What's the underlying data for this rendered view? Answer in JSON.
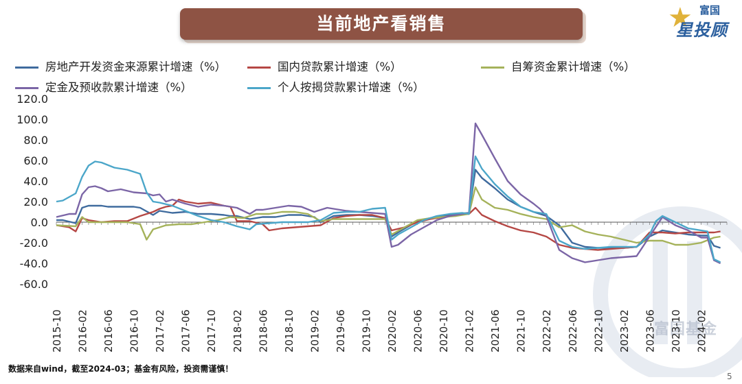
{
  "title": "当前地产看销售",
  "logo": {
    "top": "富国",
    "main": "星投顾",
    "icon": "star-icon",
    "star_color": "#e0b23a",
    "text_color": "#2b5f9e"
  },
  "watermark_text": "富国基金",
  "footer": "数据来自wind，截至2024-03；基金有风险，投资需谨慎！",
  "page_number": "5",
  "chart_data": {
    "type": "line",
    "ylim": [
      -60,
      120
    ],
    "yticks": [
      "120.0",
      "100.0",
      "80.0",
      "60.0",
      "40.0",
      "20.0",
      "0.0",
      "-20.0",
      "-40.0",
      "-60.0"
    ],
    "grid": false,
    "legend_position": "top",
    "xticks": [
      "2015-10",
      "2016-02",
      "2016-06",
      "2016-10",
      "2017-02",
      "2017-06",
      "2017-10",
      "2018-02",
      "2018-06",
      "2018-10",
      "2019-02",
      "2019-06",
      "2019-10",
      "2020-02",
      "2020-06",
      "2020-10",
      "2021-02",
      "2021-06",
      "2021-10",
      "2022-02",
      "2022-06",
      "2022-10",
      "2023-02",
      "2023-06",
      "2023-10",
      "2024-02"
    ],
    "series": [
      {
        "name": "房地产开发资金来源累计增速（%）",
        "color": "#3f6b9e",
        "points": [
          [
            0,
            2
          ],
          [
            1,
            2
          ],
          [
            3,
            -1
          ],
          [
            4,
            14
          ],
          [
            5,
            16
          ],
          [
            7,
            16
          ],
          [
            8,
            15
          ],
          [
            10,
            15
          ],
          [
            12,
            15
          ],
          [
            13,
            14
          ],
          [
            15,
            7
          ],
          [
            16,
            11
          ],
          [
            18,
            9
          ],
          [
            20,
            10
          ],
          [
            22,
            8
          ],
          [
            24,
            8
          ],
          [
            26,
            7
          ],
          [
            27,
            6
          ],
          [
            28,
            6
          ],
          [
            30,
            3
          ],
          [
            32,
            5
          ],
          [
            34,
            5
          ],
          [
            36,
            7
          ],
          [
            38,
            7
          ],
          [
            40,
            5
          ],
          [
            41,
            0
          ],
          [
            43,
            6
          ],
          [
            45,
            7
          ],
          [
            47,
            7
          ],
          [
            49,
            6
          ],
          [
            51,
            4
          ],
          [
            52,
            -14
          ],
          [
            53,
            -10
          ],
          [
            56,
            1
          ],
          [
            58,
            4
          ],
          [
            60,
            6
          ],
          [
            62,
            8
          ],
          [
            64,
            9
          ],
          [
            65,
            51
          ],
          [
            66,
            43
          ],
          [
            68,
            33
          ],
          [
            70,
            22
          ],
          [
            72,
            15
          ],
          [
            74,
            10
          ],
          [
            76,
            6
          ],
          [
            78,
            -3
          ],
          [
            80,
            -20
          ],
          [
            82,
            -24
          ],
          [
            84,
            -25
          ],
          [
            86,
            -25
          ],
          [
            88,
            -25
          ],
          [
            90,
            -24
          ],
          [
            92,
            -14
          ],
          [
            94,
            -8
          ],
          [
            96,
            -10
          ],
          [
            98,
            -12
          ],
          [
            100,
            -13
          ],
          [
            101,
            -13
          ],
          [
            102,
            -23
          ],
          [
            103,
            -25
          ]
        ]
      },
      {
        "name": "国内贷款累计增速（%）",
        "color": "#b54744",
        "points": [
          [
            0,
            -3
          ],
          [
            2,
            -5
          ],
          [
            3,
            -9
          ],
          [
            4,
            4
          ],
          [
            5,
            2
          ],
          [
            7,
            0
          ],
          [
            9,
            1
          ],
          [
            11,
            1
          ],
          [
            13,
            6
          ],
          [
            15,
            10
          ],
          [
            16,
            13
          ],
          [
            17,
            15
          ],
          [
            18,
            16
          ],
          [
            19,
            22
          ],
          [
            20,
            20
          ],
          [
            22,
            18
          ],
          [
            24,
            19
          ],
          [
            26,
            16
          ],
          [
            27,
            15
          ],
          [
            28,
            1
          ],
          [
            30,
            1
          ],
          [
            32,
            -2
          ],
          [
            33,
            -8
          ],
          [
            35,
            -6
          ],
          [
            37,
            -5
          ],
          [
            39,
            -4
          ],
          [
            41,
            -3
          ],
          [
            43,
            4
          ],
          [
            45,
            6
          ],
          [
            47,
            7
          ],
          [
            49,
            7
          ],
          [
            51,
            4
          ],
          [
            52,
            -8
          ],
          [
            54,
            -5
          ],
          [
            56,
            0
          ],
          [
            58,
            3
          ],
          [
            60,
            5
          ],
          [
            62,
            7
          ],
          [
            64,
            8
          ],
          [
            65,
            14
          ],
          [
            66,
            7
          ],
          [
            68,
            1
          ],
          [
            70,
            -4
          ],
          [
            72,
            -8
          ],
          [
            74,
            -10
          ],
          [
            76,
            -14
          ],
          [
            78,
            -22
          ],
          [
            80,
            -25
          ],
          [
            82,
            -26
          ],
          [
            84,
            -27
          ],
          [
            86,
            -26
          ],
          [
            88,
            -25
          ],
          [
            90,
            -24
          ],
          [
            92,
            -10
          ],
          [
            94,
            -10
          ],
          [
            96,
            -11
          ],
          [
            98,
            -10
          ],
          [
            100,
            -10
          ],
          [
            102,
            -10
          ],
          [
            103,
            -9
          ]
        ]
      },
      {
        "name": "自筹资金累计增速（%）",
        "color": "#a5b25a",
        "points": [
          [
            0,
            -3
          ],
          [
            3,
            -4
          ],
          [
            4,
            5
          ],
          [
            5,
            0
          ],
          [
            7,
            0
          ],
          [
            9,
            0
          ],
          [
            11,
            0
          ],
          [
            13,
            -2
          ],
          [
            14,
            -17
          ],
          [
            15,
            -7
          ],
          [
            17,
            -3
          ],
          [
            19,
            -2
          ],
          [
            21,
            -2
          ],
          [
            23,
            0
          ],
          [
            25,
            2
          ],
          [
            27,
            5
          ],
          [
            29,
            4
          ],
          [
            31,
            8
          ],
          [
            33,
            8
          ],
          [
            35,
            10
          ],
          [
            37,
            10
          ],
          [
            39,
            8
          ],
          [
            41,
            1
          ],
          [
            43,
            3
          ],
          [
            45,
            3
          ],
          [
            47,
            3
          ],
          [
            49,
            3
          ],
          [
            51,
            3
          ],
          [
            52,
            -12
          ],
          [
            54,
            -5
          ],
          [
            56,
            2
          ],
          [
            58,
            4
          ],
          [
            60,
            5
          ],
          [
            62,
            6
          ],
          [
            64,
            8
          ],
          [
            65,
            34
          ],
          [
            66,
            22
          ],
          [
            68,
            14
          ],
          [
            70,
            12
          ],
          [
            72,
            8
          ],
          [
            74,
            5
          ],
          [
            76,
            3
          ],
          [
            78,
            -5
          ],
          [
            80,
            -3
          ],
          [
            82,
            -9
          ],
          [
            84,
            -12
          ],
          [
            86,
            -14
          ],
          [
            88,
            -17
          ],
          [
            90,
            -20
          ],
          [
            92,
            -18
          ],
          [
            94,
            -18
          ],
          [
            96,
            -22
          ],
          [
            98,
            -22
          ],
          [
            100,
            -20
          ],
          [
            102,
            -15
          ],
          [
            103,
            -14
          ]
        ]
      },
      {
        "name": "定金及预收款累计增速（%）",
        "color": "#7b65a6",
        "points": [
          [
            0,
            5
          ],
          [
            2,
            8
          ],
          [
            3,
            8
          ],
          [
            4,
            27
          ],
          [
            5,
            34
          ],
          [
            6,
            35
          ],
          [
            7,
            33
          ],
          [
            8,
            30
          ],
          [
            10,
            32
          ],
          [
            12,
            29
          ],
          [
            14,
            28
          ],
          [
            15,
            26
          ],
          [
            16,
            27
          ],
          [
            17,
            20
          ],
          [
            18,
            22
          ],
          [
            20,
            18
          ],
          [
            22,
            15
          ],
          [
            24,
            17
          ],
          [
            26,
            16
          ],
          [
            28,
            14
          ],
          [
            30,
            8
          ],
          [
            31,
            12
          ],
          [
            32,
            12
          ],
          [
            34,
            14
          ],
          [
            36,
            16
          ],
          [
            38,
            15
          ],
          [
            40,
            10
          ],
          [
            42,
            14
          ],
          [
            43,
            13
          ],
          [
            45,
            11
          ],
          [
            47,
            10
          ],
          [
            49,
            9
          ],
          [
            51,
            8
          ],
          [
            52,
            -24
          ],
          [
            53,
            -22
          ],
          [
            55,
            -12
          ],
          [
            57,
            -5
          ],
          [
            59,
            2
          ],
          [
            61,
            6
          ],
          [
            63,
            8
          ],
          [
            64,
            9
          ],
          [
            65,
            96
          ],
          [
            66,
            85
          ],
          [
            68,
            62
          ],
          [
            70,
            40
          ],
          [
            72,
            27
          ],
          [
            74,
            18
          ],
          [
            75,
            13
          ],
          [
            76,
            6
          ],
          [
            78,
            -27
          ],
          [
            80,
            -35
          ],
          [
            82,
            -39
          ],
          [
            84,
            -37
          ],
          [
            86,
            -35
          ],
          [
            88,
            -34
          ],
          [
            90,
            -33
          ],
          [
            92,
            -14
          ],
          [
            94,
            5
          ],
          [
            96,
            -3
          ],
          [
            98,
            -8
          ],
          [
            100,
            -15
          ],
          [
            101,
            -15
          ],
          [
            102,
            -37
          ],
          [
            103,
            -40
          ]
        ]
      },
      {
        "name": "个人按揭贷款累计增速（%）",
        "color": "#4ba6c9",
        "points": [
          [
            0,
            20
          ],
          [
            1,
            21
          ],
          [
            3,
            28
          ],
          [
            4,
            44
          ],
          [
            5,
            55
          ],
          [
            6,
            59
          ],
          [
            7,
            58
          ],
          [
            9,
            53
          ],
          [
            11,
            51
          ],
          [
            13,
            47
          ],
          [
            14,
            29
          ],
          [
            15,
            20
          ],
          [
            16,
            19
          ],
          [
            18,
            16
          ],
          [
            20,
            11
          ],
          [
            22,
            6
          ],
          [
            24,
            2
          ],
          [
            26,
            0
          ],
          [
            28,
            -4
          ],
          [
            30,
            -7
          ],
          [
            31,
            -2
          ],
          [
            33,
            -1
          ],
          [
            35,
            0
          ],
          [
            37,
            0
          ],
          [
            39,
            0
          ],
          [
            41,
            2
          ],
          [
            43,
            9
          ],
          [
            45,
            10
          ],
          [
            47,
            10
          ],
          [
            49,
            13
          ],
          [
            51,
            14
          ],
          [
            52,
            -17
          ],
          [
            53,
            -12
          ],
          [
            55,
            -5
          ],
          [
            57,
            2
          ],
          [
            59,
            6
          ],
          [
            61,
            8
          ],
          [
            63,
            9
          ],
          [
            64,
            8
          ],
          [
            65,
            64
          ],
          [
            66,
            52
          ],
          [
            68,
            37
          ],
          [
            70,
            25
          ],
          [
            72,
            15
          ],
          [
            74,
            10
          ],
          [
            76,
            8
          ],
          [
            78,
            -18
          ],
          [
            80,
            -24
          ],
          [
            82,
            -26
          ],
          [
            84,
            -25
          ],
          [
            86,
            -24
          ],
          [
            88,
            -24
          ],
          [
            90,
            -24
          ],
          [
            92,
            -12
          ],
          [
            93,
            1
          ],
          [
            94,
            6
          ],
          [
            96,
            0
          ],
          [
            98,
            -6
          ],
          [
            100,
            -8
          ],
          [
            101,
            -9
          ],
          [
            102,
            -36
          ],
          [
            103,
            -39
          ]
        ]
      }
    ]
  }
}
